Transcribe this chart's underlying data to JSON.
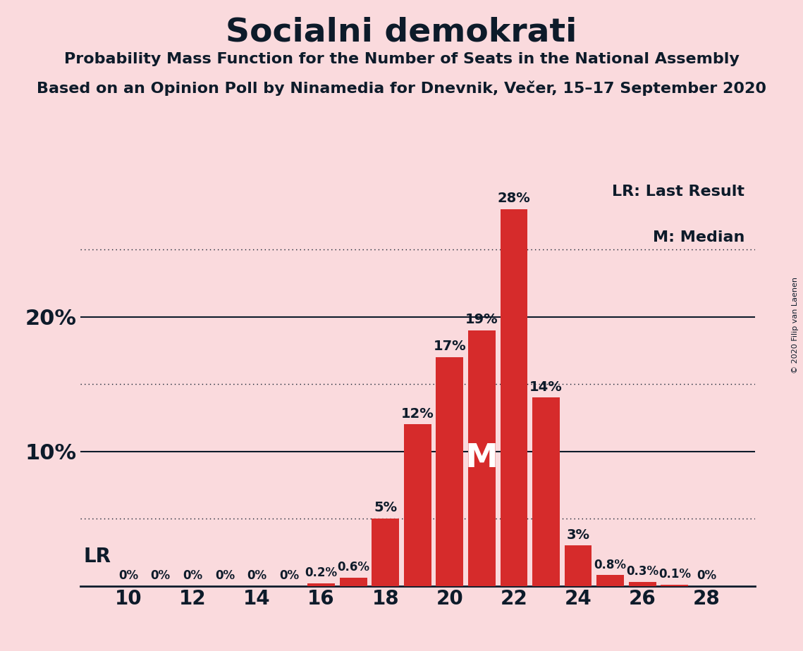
{
  "title": "Socialni demokrati",
  "subtitle1": "Probability Mass Function for the Number of Seats in the National Assembly",
  "subtitle2": "Based on an Opinion Poll by Ninamedia for Dnevnik, Večer, 15–17 September 2020",
  "copyright": "© 2020 Filip van Laenen",
  "seats": [
    10,
    11,
    12,
    13,
    14,
    15,
    16,
    17,
    18,
    19,
    20,
    21,
    22,
    23,
    24,
    25,
    26,
    27,
    28
  ],
  "probabilities": [
    0.0,
    0.0,
    0.0,
    0.0,
    0.0,
    0.0,
    0.2,
    0.6,
    5.0,
    12.0,
    17.0,
    19.0,
    28.0,
    14.0,
    3.0,
    0.8,
    0.3,
    0.1,
    0.0
  ],
  "bar_color": "#d62b2b",
  "background_color": "#fadadd",
  "text_color": "#0d1b2a",
  "median_seat": 21,
  "ylim": [
    0,
    30
  ],
  "solid_yticks": [
    10,
    20
  ],
  "dotted_yticks": [
    5,
    15,
    25
  ],
  "legend_lr": "LR: Last Result",
  "legend_m": "M: Median",
  "label_lr": "LR",
  "label_m": "M"
}
